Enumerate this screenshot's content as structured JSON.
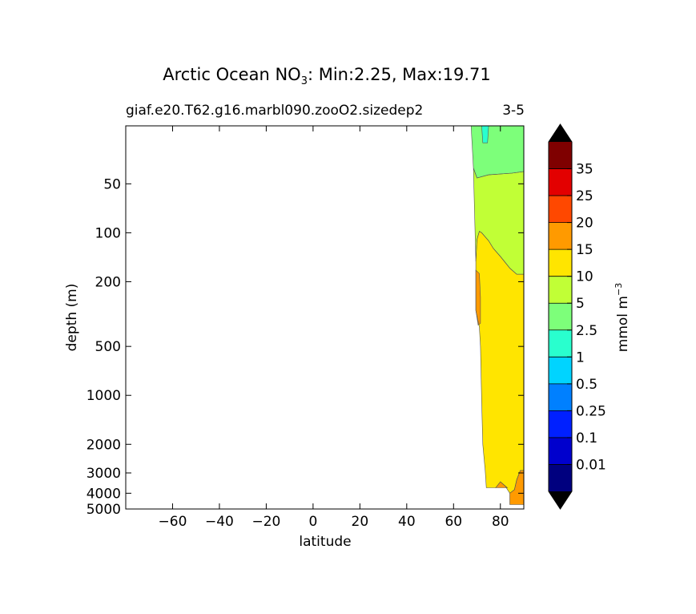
{
  "chart_data": {
    "type": "contour",
    "title_prefix": "Arctic Ocean NO",
    "title_sub": "3",
    "title_suffix": ": Min:2.25, Max:19.71",
    "subtitle_left": "giaf.e20.T62.g16.marbl090.zooO2.sizedep2",
    "subtitle_right": "3-5",
    "xlabel": "latitude",
    "ylabel": "depth (m)",
    "xlim": [
      -80,
      90
    ],
    "x_ticks": [
      -60,
      -40,
      -20,
      0,
      20,
      40,
      60,
      80
    ],
    "x_tick_labels": [
      "−60",
      "−40",
      "−20",
      "0",
      "20",
      "40",
      "60",
      "80"
    ],
    "y_scale": "log",
    "ylim": [
      5000,
      22
    ],
    "y_ticks": [
      50,
      100,
      200,
      500,
      1000,
      2000,
      3000,
      4000,
      5000
    ],
    "y_tick_labels": [
      "50",
      "100",
      "200",
      "500",
      "1000",
      "2000",
      "3000",
      "4000",
      "5000"
    ],
    "min": 2.25,
    "max": 19.71,
    "colorbar": {
      "label": "mmol m",
      "label_sup": "−3",
      "levels": [
        "0.01",
        "0.1",
        "0.25",
        "0.5",
        "1",
        "2.5",
        "5",
        "10",
        "15",
        "20",
        "25",
        "35"
      ],
      "colors": [
        "#00007f",
        "#0000cd",
        "#0020ff",
        "#0080ff",
        "#00d4ff",
        "#29ffce",
        "#7dff7a",
        "#c1ff36",
        "#ffe500",
        "#ff9a00",
        "#ff4800",
        "#e30000",
        "#7f0000"
      ],
      "extend": "both",
      "extend_color": "#000000"
    },
    "regions": [
      {
        "name": "2.5-5",
        "color": "#7dff7a",
        "polygon": [
          [
            67.5,
            22
          ],
          [
            90,
            22
          ],
          [
            90,
            42
          ],
          [
            85,
            43
          ],
          [
            75,
            44
          ],
          [
            70,
            46
          ],
          [
            68.5,
            40
          ]
        ]
      },
      {
        "name": "1-2.5",
        "color": "#29ffce",
        "polygon": [
          [
            72,
            22
          ],
          [
            75,
            22
          ],
          [
            74.5,
            28
          ],
          [
            72.5,
            28
          ]
        ]
      },
      {
        "name": "5-10",
        "color": "#c1ff36",
        "polygon": [
          [
            68.5,
            40
          ],
          [
            70,
            46
          ],
          [
            75,
            44
          ],
          [
            85,
            43
          ],
          [
            90,
            42
          ],
          [
            90,
            180
          ],
          [
            87,
            180
          ],
          [
            84,
            165
          ],
          [
            80,
            140
          ],
          [
            77,
            125
          ],
          [
            75,
            112
          ],
          [
            72,
            100
          ],
          [
            71,
            98
          ],
          [
            70,
            110
          ],
          [
            69.5,
            150
          ]
        ]
      },
      {
        "name": "10-15",
        "color": "#ffe500",
        "polygon": [
          [
            69.5,
            150
          ],
          [
            70,
            110
          ],
          [
            71,
            98
          ],
          [
            72,
            100
          ],
          [
            75,
            112
          ],
          [
            77,
            125
          ],
          [
            80,
            140
          ],
          [
            84,
            165
          ],
          [
            87,
            180
          ],
          [
            90,
            180
          ],
          [
            90,
            2900
          ],
          [
            88.5,
            2900
          ],
          [
            87,
            3300
          ],
          [
            86,
            3800
          ],
          [
            84,
            4000
          ],
          [
            82,
            3600
          ],
          [
            80,
            3400
          ],
          [
            78,
            3700
          ],
          [
            74,
            3700
          ],
          [
            73.5,
            2900
          ],
          [
            72.5,
            2000
          ],
          [
            72,
            1100
          ],
          [
            71.5,
            500
          ],
          [
            71,
            380
          ],
          [
            69.5,
            300
          ]
        ]
      },
      {
        "name": "15-20 upper",
        "color": "#ff9a00",
        "polygon": [
          [
            69.5,
            170
          ],
          [
            71,
            178
          ],
          [
            71.5,
            250
          ],
          [
            71.5,
            360
          ],
          [
            70.5,
            370
          ],
          [
            69.5,
            300
          ]
        ]
      },
      {
        "name": "15-20 lower",
        "color": "#ff9a00",
        "polygon": [
          [
            78,
            3700
          ],
          [
            80,
            3400
          ],
          [
            82,
            3600
          ],
          [
            83,
            3700
          ]
        ]
      },
      {
        "name": "15-20 deep",
        "color": "#ff9a00",
        "polygon": [
          [
            84,
            4000
          ],
          [
            86,
            3800
          ],
          [
            87,
            3300
          ],
          [
            88.5,
            2900
          ],
          [
            90,
            2900
          ],
          [
            90,
            4700
          ],
          [
            84,
            4700
          ]
        ]
      }
    ]
  }
}
